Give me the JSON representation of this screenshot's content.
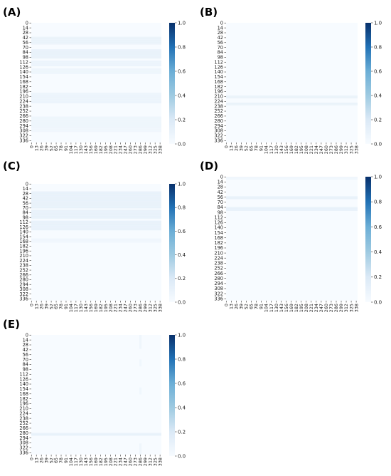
{
  "chart_data": [
    {
      "type": "heatmap",
      "panel_label": "(A)",
      "y_ticks": [
        "0",
        "14",
        "28",
        "42",
        "56",
        "70",
        "84",
        "98",
        "112",
        "126",
        "140",
        "154",
        "168",
        "182",
        "196",
        "210",
        "224",
        "238",
        "252",
        "266",
        "280",
        "294",
        "308",
        "322",
        "336"
      ],
      "x_ticks": [
        "0",
        "13",
        "26",
        "39",
        "52",
        "65",
        "78",
        "91",
        "104",
        "117",
        "130",
        "143",
        "156",
        "169",
        "182",
        "195",
        "208",
        "221",
        "234",
        "247",
        "260",
        "273",
        "286",
        "299",
        "312",
        "325",
        "338"
      ],
      "size": 342,
      "colorbar": {
        "range": [
          0.0,
          1.0
        ],
        "ticks": [
          "0.0",
          "0.2",
          "0.4",
          "0.6",
          "0.8",
          "1.0"
        ]
      },
      "bands": [
        {
          "rows": [
            40,
            62
          ],
          "value": 0.08
        },
        {
          "rows": [
            76,
            102
          ],
          "value": 0.09
        },
        {
          "rows": [
            108,
            124
          ],
          "value": 0.07
        },
        {
          "rows": [
            130,
            146
          ],
          "value": 0.06
        },
        {
          "rows": [
            200,
            230
          ],
          "value": 0.07
        },
        {
          "rows": [
            268,
            300
          ],
          "value": 0.06
        },
        {
          "rows": [
            300,
            312
          ],
          "value": 0.04
        }
      ]
    },
    {
      "type": "heatmap",
      "panel_label": "(B)",
      "y_ticks": [
        "0",
        "14",
        "28",
        "42",
        "56",
        "70",
        "84",
        "98",
        "112",
        "126",
        "140",
        "154",
        "168",
        "182",
        "196",
        "210",
        "224",
        "238",
        "252",
        "266",
        "280",
        "294",
        "308",
        "322",
        "336"
      ],
      "x_ticks": [
        "0",
        "13",
        "26",
        "39",
        "52",
        "65",
        "78",
        "91",
        "104",
        "117",
        "130",
        "143",
        "156",
        "169",
        "182",
        "195",
        "208",
        "221",
        "234",
        "247",
        "260",
        "273",
        "286",
        "299",
        "312",
        "325",
        "338"
      ],
      "size": 342,
      "colorbar": {
        "range": [
          0.0,
          1.0
        ],
        "ticks": [
          "0.0",
          "0.2",
          "0.4",
          "0.6",
          "0.8",
          "1.0"
        ]
      },
      "bands": [
        {
          "rows": [
            208,
            216
          ],
          "value": 0.08
        },
        {
          "rows": [
            228,
            236
          ],
          "value": 0.08
        }
      ]
    },
    {
      "type": "heatmap",
      "panel_label": "(C)",
      "y_ticks": [
        "0",
        "14",
        "28",
        "42",
        "56",
        "70",
        "84",
        "98",
        "112",
        "126",
        "140",
        "154",
        "168",
        "182",
        "196",
        "210",
        "224",
        "238",
        "252",
        "266",
        "280",
        "294",
        "308",
        "322",
        "336"
      ],
      "x_ticks": [
        "0",
        "13",
        "26",
        "39",
        "52",
        "65",
        "78",
        "91",
        "104",
        "117",
        "130",
        "143",
        "156",
        "169",
        "182",
        "195",
        "208",
        "221",
        "234",
        "247",
        "260",
        "273",
        "286",
        "299",
        "312",
        "325",
        "338"
      ],
      "size": 342,
      "colorbar": {
        "range": [
          0.0,
          1.0
        ],
        "ticks": [
          "0.0",
          "0.2",
          "0.4",
          "0.6",
          "0.8",
          "1.0"
        ]
      },
      "bands": [
        {
          "rows": [
            22,
            72
          ],
          "value": 0.09
        },
        {
          "rows": [
            76,
            102
          ],
          "value": 0.09
        },
        {
          "rows": [
            108,
            136
          ],
          "value": 0.09
        },
        {
          "rows": [
            160,
            172
          ],
          "value": 0.04
        }
      ]
    },
    {
      "type": "heatmap",
      "panel_label": "(D)",
      "y_ticks": [
        "0",
        "14",
        "28",
        "42",
        "56",
        "70",
        "84",
        "98",
        "112",
        "126",
        "140",
        "154",
        "168",
        "182",
        "196",
        "210",
        "224",
        "238",
        "252",
        "266",
        "280",
        "294",
        "308",
        "322",
        "336"
      ],
      "x_ticks": [
        "0",
        "13",
        "26",
        "39",
        "52",
        "65",
        "78",
        "91",
        "104",
        "117",
        "130",
        "143",
        "156",
        "169",
        "182",
        "195",
        "208",
        "221",
        "234",
        "247",
        "260",
        "273",
        "286",
        "299",
        "312",
        "325",
        "338"
      ],
      "size": 342,
      "colorbar": {
        "range": [
          0.0,
          1.0
        ],
        "ticks": [
          "0.0",
          "0.2",
          "0.4",
          "0.6",
          "0.8",
          "1.0"
        ]
      },
      "bands": [
        {
          "rows": [
            0,
            8
          ],
          "value": 0.05
        },
        {
          "rows": [
            54,
            62
          ],
          "value": 0.09
        },
        {
          "rows": [
            84,
            94
          ],
          "value": 0.1
        }
      ]
    },
    {
      "type": "heatmap",
      "panel_label": "(E)",
      "y_ticks": [
        "0",
        "14",
        "28",
        "42",
        "56",
        "70",
        "84",
        "98",
        "112",
        "126",
        "140",
        "154",
        "168",
        "182",
        "196",
        "210",
        "224",
        "238",
        "252",
        "266",
        "280",
        "294",
        "308",
        "322",
        "336"
      ],
      "x_ticks": [
        "0",
        "13",
        "26",
        "39",
        "52",
        "65",
        "78",
        "91",
        "104",
        "117",
        "130",
        "143",
        "156",
        "169",
        "182",
        "195",
        "208",
        "221",
        "234",
        "247",
        "260",
        "273",
        "286",
        "299",
        "312",
        "325",
        "338"
      ],
      "size": 342,
      "colorbar": {
        "range": [
          0.0,
          1.0
        ],
        "ticks": [
          "0.0",
          "0.2",
          "0.4",
          "0.6",
          "0.8",
          "1.0"
        ]
      },
      "bands": [
        {
          "rows": [
            280,
            288
          ],
          "value": 0.09
        }
      ],
      "columns": [
        {
          "cols": [
            284,
            290
          ],
          "rows": [
            0,
            40
          ],
          "value": 0.06
        },
        {
          "cols": [
            284,
            290
          ],
          "rows": [
            70,
            90
          ],
          "value": 0.05
        },
        {
          "cols": [
            284,
            290
          ],
          "rows": [
            150,
            170
          ],
          "value": 0.05
        },
        {
          "cols": [
            284,
            290
          ],
          "rows": [
            310,
            342
          ],
          "value": 0.06
        }
      ]
    }
  ]
}
